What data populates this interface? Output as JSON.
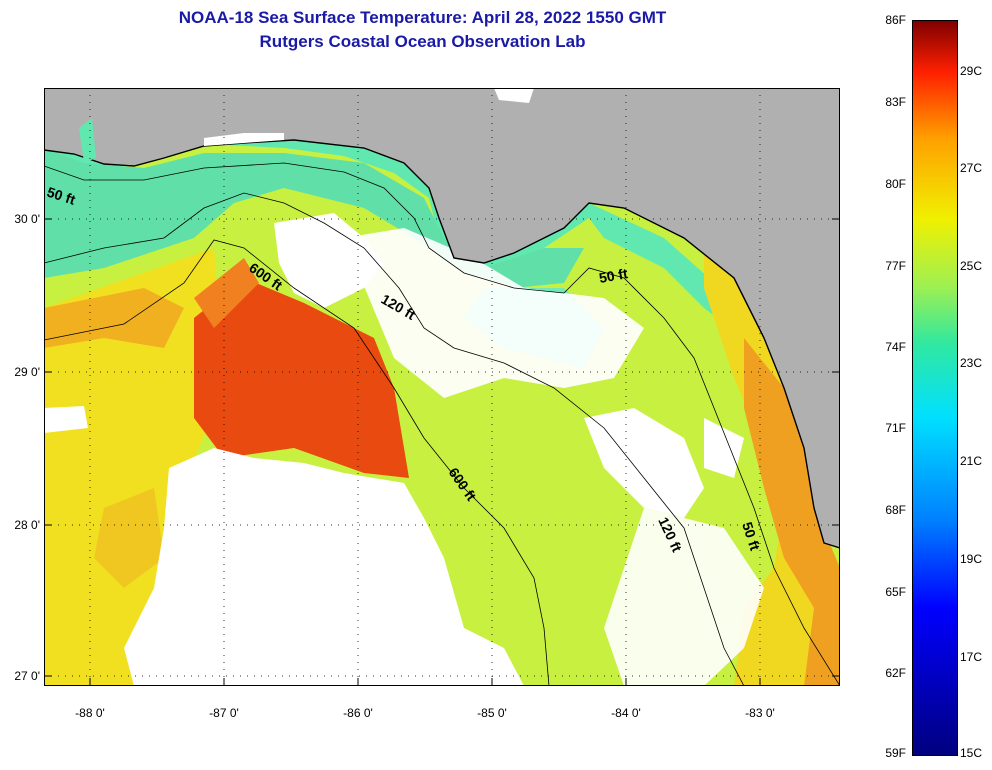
{
  "title_line1": "NOAA-18 Sea Surface Temperature:  April 28, 2022 1550 GMT",
  "title_line2": "Rutgers Coastal Ocean Observation Lab",
  "lat_labels": [
    "30 0'",
    "29 0'",
    "28 0'",
    "27 0'"
  ],
  "lon_labels": [
    "-88 0'",
    "-87 0'",
    "-86 0'",
    "-85 0'",
    "-84 0'",
    "-83 0'"
  ],
  "contour_labels": [
    "50 ft",
    "600 ft",
    "120 ft",
    "50 ft",
    "600 ft",
    "120 ft",
    "50 ft"
  ],
  "colorbar": {
    "f_labels": [
      "86F",
      "83F",
      "80F",
      "77F",
      "74F",
      "71F",
      "68F",
      "65F",
      "62F",
      "59F"
    ],
    "c_labels": [
      "29C",
      "27C",
      "25C",
      "23C",
      "21C",
      "19C",
      "17C",
      "15C"
    ]
  },
  "colors": {
    "land": "#b0b0b0",
    "cloud": "#ffffff",
    "title": "#1a1aa6",
    "sst_cool": "#40e8a8",
    "sst_mid": "#b8f040",
    "sst_warm": "#f0f000",
    "sst_hot": "#e84010"
  }
}
